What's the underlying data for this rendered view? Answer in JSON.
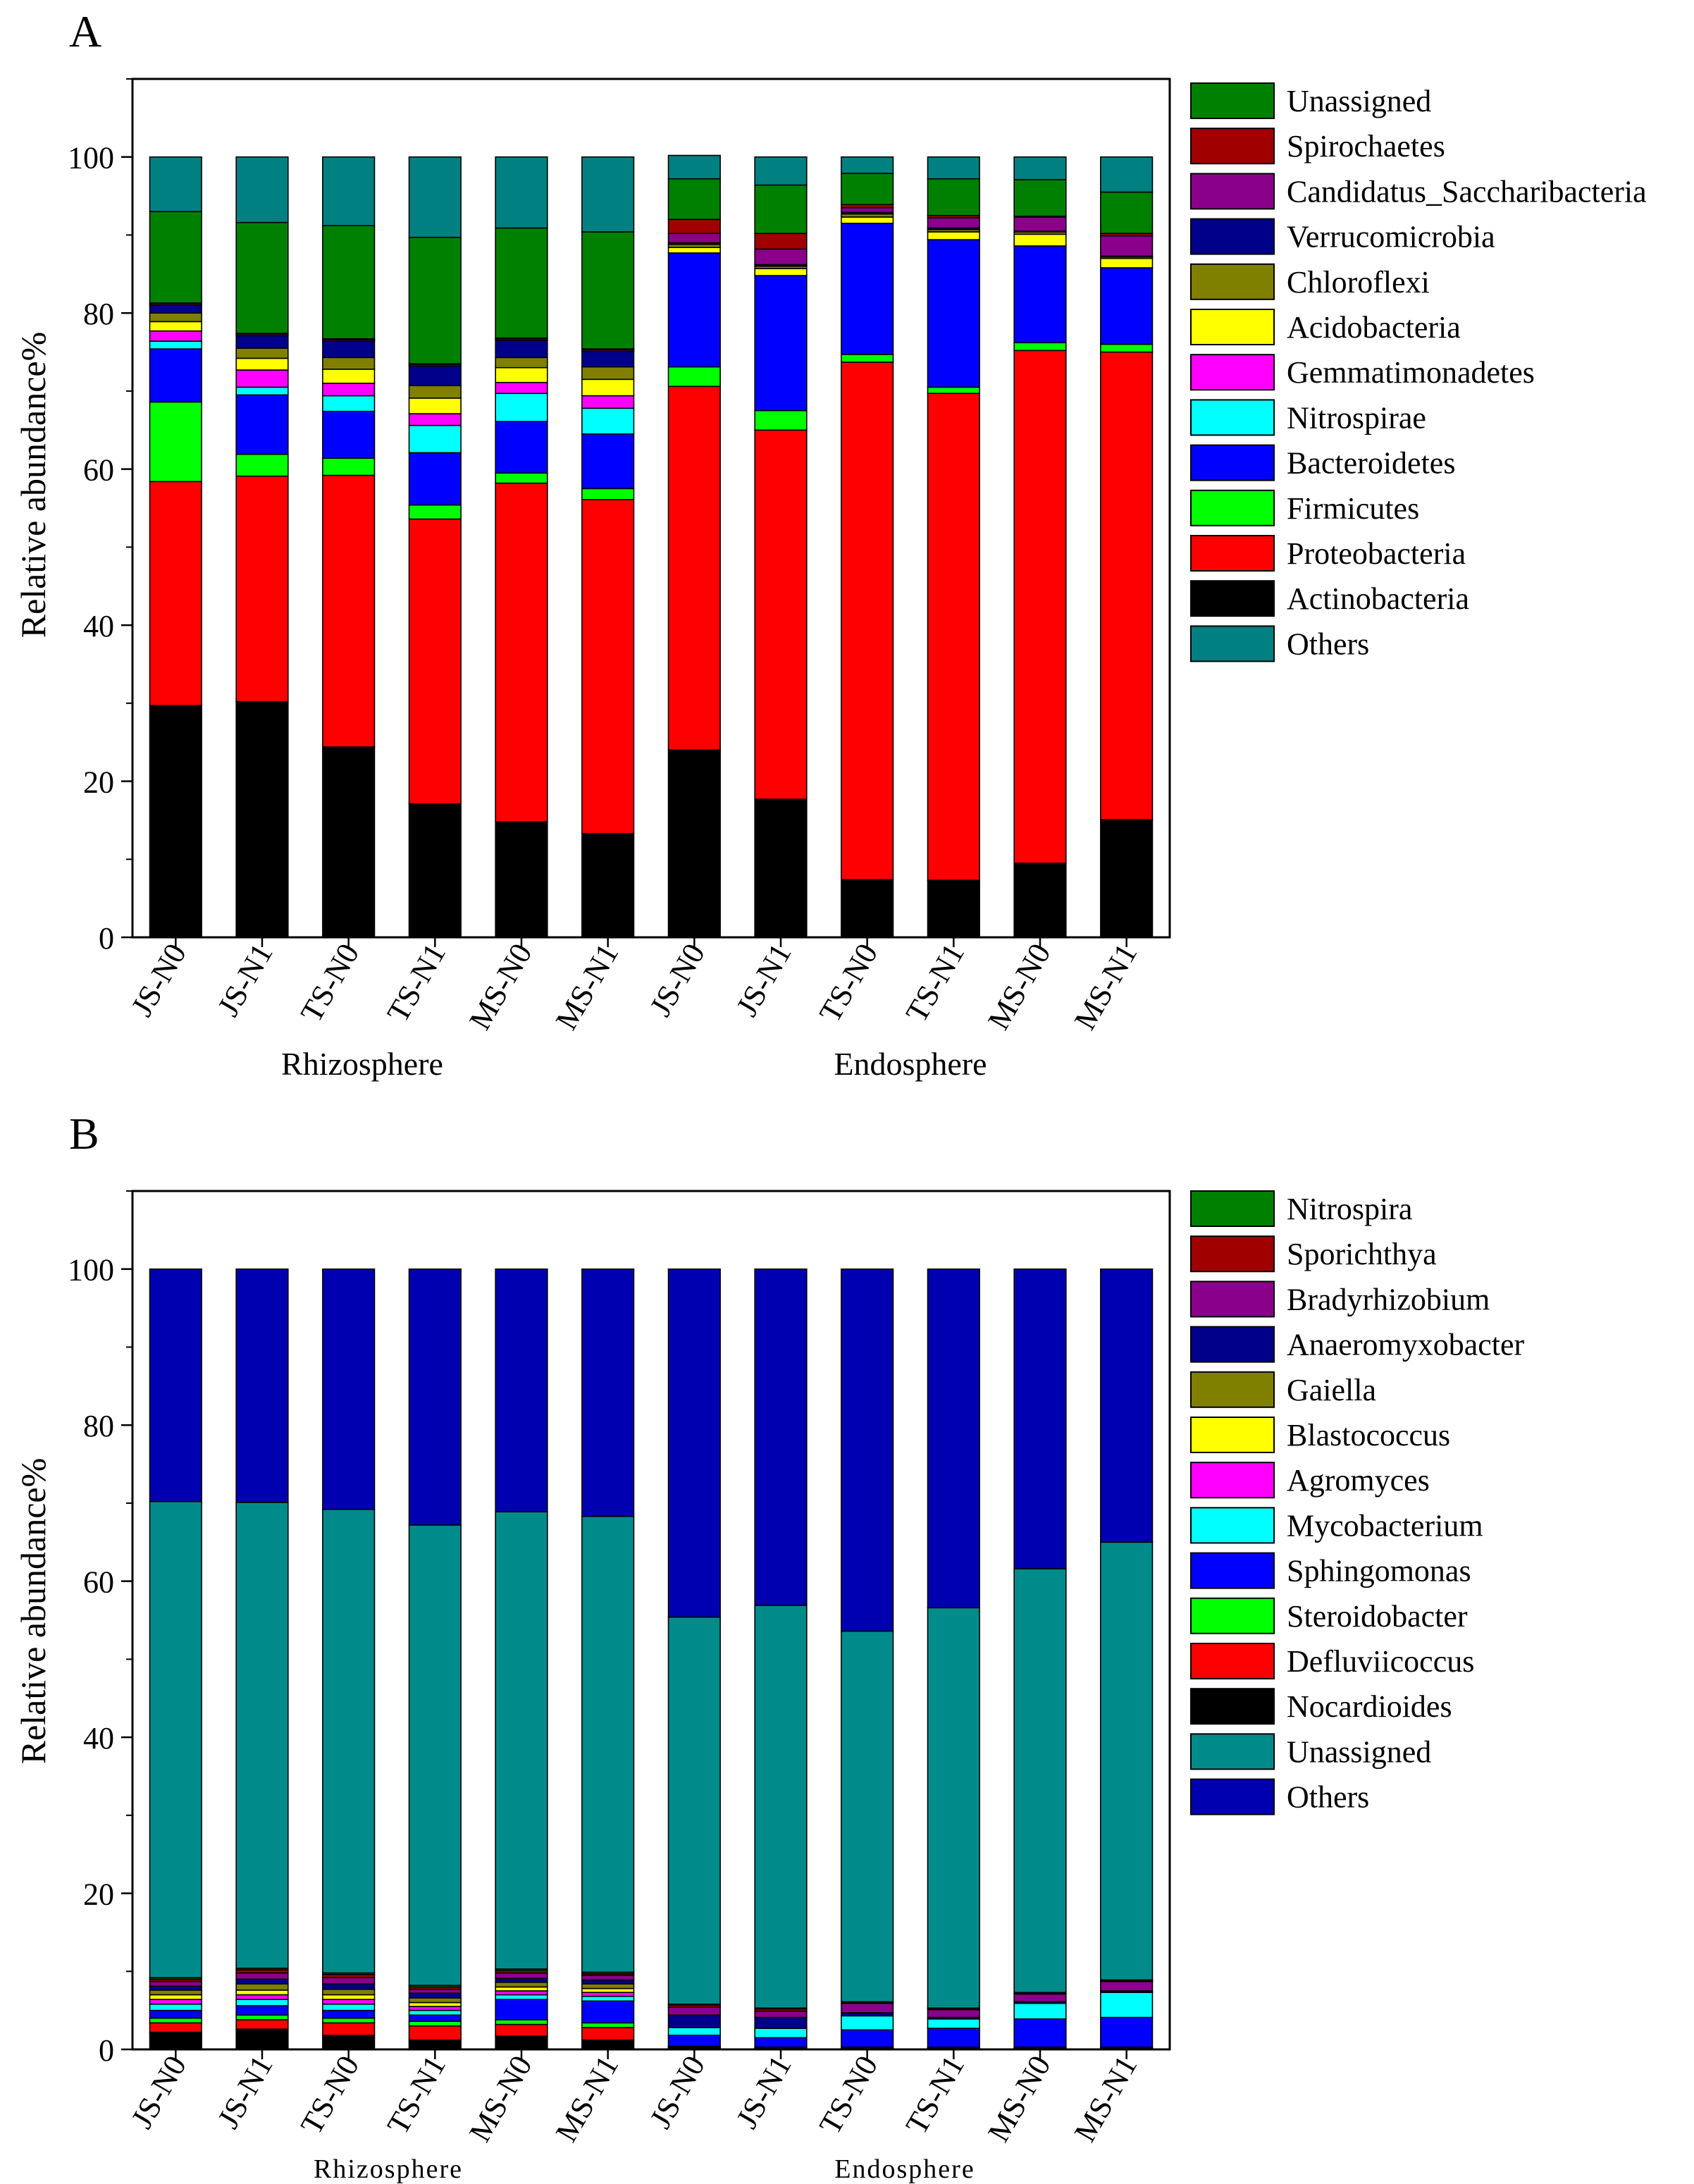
{
  "colors": {
    "Unassigned_A": "#008000",
    "Spirochaetes": "#a00000",
    "Candidatus_Saccharibacteria": "#8b008b",
    "Verrucomicrobia": "#00008b",
    "Chloroflexi": "#808000",
    "Acidobacteria": "#ffff00",
    "Gemmatimonadetes": "#ff00ff",
    "Nitrospirae": "#00ffff",
    "Bacteroidetes": "#0000ff",
    "Firmicutes": "#00ff00",
    "Proteobacteria": "#ff0000",
    "Actinobacteria": "#000000",
    "Others_A": "#008080",
    "grid": "#000000"
  },
  "chart_data": [
    {
      "panel": "A",
      "type": "bar",
      "stacked": true,
      "ylabel": "Relative abundance%",
      "ylim": [
        0,
        110
      ],
      "yticks": [
        "0",
        "20",
        "40",
        "60",
        "80",
        "100"
      ],
      "categories": [
        "JS-N0",
        "JS-N1",
        "TS-N0",
        "TS-N1",
        "MS-N0",
        "MS-N1",
        "JS-N0",
        "JS-N1",
        "TS-N0",
        "TS-N1",
        "MS-N0",
        "MS-N1"
      ],
      "groups": [
        {
          "label": "Rhizosphere",
          "from": 0,
          "to": 5
        },
        {
          "label": "Endosphere",
          "from": 6,
          "to": 11
        }
      ],
      "legend": [
        "Unassigned",
        "Spirochaetes",
        "Candidatus_Saccharibacteria",
        "Verrucomicrobia",
        "Chloroflexi",
        "Acidobacteria",
        "Gemmatimonadetes",
        "Nitrospirae",
        "Bacteroidetes",
        "Firmicutes",
        "Proteobacteria",
        "Actinobacteria",
        "Others"
      ],
      "legend_colors": [
        "#008000",
        "#a00000",
        "#8b008b",
        "#00008b",
        "#808000",
        "#ffff00",
        "#ff00ff",
        "#00ffff",
        "#0000ff",
        "#00ff00",
        "#ff0000",
        "#000000",
        "#008080"
      ],
      "stack_order": [
        "Actinobacteria",
        "Proteobacteria",
        "Firmicutes",
        "Bacteroidetes",
        "Nitrospirae",
        "Gemmatimonadetes",
        "Acidobacteria",
        "Chloroflexi",
        "Verrucomicrobia",
        "Candidatus_Saccharibacteria",
        "Spirochaetes",
        "Unassigned",
        "Others"
      ],
      "stack_colors": [
        "#000000",
        "#ff0000",
        "#00ff00",
        "#0000ff",
        "#00ffff",
        "#ff00ff",
        "#ffff00",
        "#808000",
        "#00008b",
        "#8b008b",
        "#a00000",
        "#008000",
        "#008080"
      ],
      "series": [
        {
          "name": "Actinobacteria",
          "values": [
            29.7,
            30.2,
            24.4,
            17.1,
            14.8,
            13.3,
            24.0,
            17.7,
            7.4,
            7.3,
            9.5,
            15.1
          ]
        },
        {
          "name": "Proteobacteria",
          "values": [
            28.7,
            28.9,
            34.8,
            36.5,
            43.4,
            42.8,
            46.6,
            47.3,
            66.3,
            62.4,
            65.7,
            59.9
          ]
        },
        {
          "name": "Firmicutes",
          "values": [
            10.2,
            2.8,
            2.2,
            1.8,
            1.3,
            1.4,
            2.5,
            2.5,
            1.0,
            0.8,
            1.0,
            1.0
          ]
        },
        {
          "name": "Bacteroidetes",
          "values": [
            6.8,
            7.6,
            6.0,
            6.7,
            6.6,
            7.0,
            14.6,
            17.3,
            16.8,
            18.9,
            12.4,
            9.8
          ]
        },
        {
          "name": "Nitrospirae",
          "values": [
            1.0,
            1.0,
            2.0,
            3.5,
            3.6,
            3.3,
            0.0,
            0.0,
            0.0,
            0.0,
            0.0,
            0.0
          ]
        },
        {
          "name": "Gemmatimonadetes",
          "values": [
            1.3,
            2.2,
            1.6,
            1.5,
            1.4,
            1.6,
            0.0,
            0.0,
            0.0,
            0.0,
            0.0,
            0.0
          ]
        },
        {
          "name": "Acidobacteria",
          "values": [
            1.2,
            1.5,
            1.8,
            2.0,
            1.9,
            2.1,
            0.7,
            0.9,
            0.8,
            1.0,
            1.5,
            1.2
          ]
        },
        {
          "name": "Chloroflexi",
          "values": [
            1.1,
            1.3,
            1.5,
            1.6,
            1.3,
            1.6,
            0.4,
            0.3,
            0.4,
            0.3,
            0.3,
            0.2
          ]
        },
        {
          "name": "Verrucomicrobia",
          "values": [
            1.0,
            1.6,
            2.1,
            2.5,
            2.2,
            2.0,
            0.2,
            0.2,
            0.2,
            0.2,
            0.1,
            0.1
          ]
        },
        {
          "name": "Candidatus_Saccharibacteria",
          "values": [
            0.2,
            0.2,
            0.2,
            0.2,
            0.2,
            0.2,
            1.2,
            2.0,
            0.6,
            1.3,
            1.8,
            2.6
          ]
        },
        {
          "name": "Spirochaetes",
          "values": [
            0.1,
            0.1,
            0.1,
            0.1,
            0.1,
            0.1,
            1.8,
            2.0,
            0.4,
            0.3,
            0.1,
            0.3
          ]
        },
        {
          "name": "Unassigned",
          "values": [
            11.7,
            14.2,
            14.5,
            16.2,
            14.1,
            15.0,
            5.2,
            6.2,
            4.0,
            4.7,
            4.7,
            5.3
          ]
        },
        {
          "name": "Others",
          "values": [
            7.0,
            8.4,
            8.8,
            10.3,
            9.1,
            9.6,
            3.0,
            3.6,
            2.1,
            2.8,
            2.9,
            4.5
          ]
        }
      ]
    },
    {
      "panel": "B",
      "type": "bar",
      "stacked": true,
      "ylabel": "Relative abundance%",
      "ylim": [
        0,
        110
      ],
      "yticks": [
        "0",
        "20",
        "40",
        "60",
        "80",
        "100"
      ],
      "categories": [
        "JS-N0",
        "JS-N1",
        "TS-N0",
        "TS-N1",
        "MS-N0",
        "MS-N1",
        "JS-N0",
        "JS-N1",
        "TS-N0",
        "TS-N1",
        "MS-N0",
        "MS-N1"
      ],
      "groups": [
        {
          "label": "Rhizosphere",
          "from": 0,
          "to": 5
        },
        {
          "label": "Endosphere",
          "from": 6,
          "to": 11
        }
      ],
      "legend": [
        "Nitrospira",
        "Sporichthya",
        "Bradyrhizobium",
        "Anaeromyxobacter",
        "Gaiella",
        "Blastococcus",
        "Agromyces",
        "Mycobacterium",
        "Sphingomonas",
        "Steroidobacter",
        "Defluviicoccus",
        "Nocardioides",
        "Unassigned",
        "Others"
      ],
      "legend_colors": [
        "#008000",
        "#a00000",
        "#8b008b",
        "#00008b",
        "#808000",
        "#ffff00",
        "#ff00ff",
        "#00ffff",
        "#0000ff",
        "#00ff00",
        "#ff0000",
        "#000000",
        "#008b8b",
        "#0000b0"
      ],
      "stack_order": [
        "Nocardioides",
        "Defluviicoccus",
        "Steroidobacter",
        "Sphingomonas",
        "Mycobacterium",
        "Agromyces",
        "Blastococcus",
        "Gaiella",
        "Anaeromyxobacter",
        "Bradyrhizobium",
        "Sporichthya",
        "Nitrospira",
        "Unassigned",
        "Others"
      ],
      "stack_colors": [
        "#000000",
        "#ff0000",
        "#00ff00",
        "#0000ff",
        "#00ffff",
        "#ff00ff",
        "#ffff00",
        "#808000",
        "#00008b",
        "#8b008b",
        "#a00000",
        "#008000",
        "#008b8b",
        "#0000b0"
      ],
      "series": [
        {
          "name": "Nocardioides",
          "values": [
            2.2,
            2.6,
            1.8,
            1.2,
            1.7,
            1.2,
            0.2,
            0.1,
            0.1,
            0.1,
            0.1,
            0.1
          ]
        },
        {
          "name": "Defluviicoccus",
          "values": [
            1.2,
            1.2,
            1.6,
            1.8,
            1.5,
            1.6,
            0.1,
            0.1,
            0.1,
            0.1,
            0.1,
            0.1
          ]
        },
        {
          "name": "Steroidobacter",
          "values": [
            0.6,
            0.6,
            0.6,
            0.6,
            0.6,
            0.6,
            0.1,
            0.1,
            0.1,
            0.1,
            0.1,
            0.1
          ]
        },
        {
          "name": "Sphingomonas",
          "values": [
            1.0,
            1.2,
            1.0,
            0.8,
            2.6,
            2.8,
            1.4,
            1.2,
            2.2,
            2.4,
            3.6,
            3.8
          ]
        },
        {
          "name": "Mycobacterium",
          "values": [
            0.8,
            0.8,
            0.8,
            0.6,
            0.6,
            0.6,
            1.0,
            1.2,
            1.8,
            1.2,
            2.0,
            3.2
          ]
        },
        {
          "name": "Agromyces",
          "values": [
            0.6,
            0.6,
            0.6,
            0.5,
            0.5,
            0.5,
            0.0,
            0.0,
            0.0,
            0.0,
            0.0,
            0.0
          ]
        },
        {
          "name": "Blastococcus",
          "values": [
            0.6,
            0.6,
            0.6,
            0.5,
            0.5,
            0.5,
            0.0,
            0.0,
            0.0,
            0.0,
            0.0,
            0.0
          ]
        },
        {
          "name": "Gaiella",
          "values": [
            0.6,
            0.8,
            0.7,
            0.6,
            0.6,
            0.6,
            0.0,
            0.0,
            0.0,
            0.0,
            0.0,
            0.0
          ]
        },
        {
          "name": "Anaeromyxobacter",
          "values": [
            0.5,
            0.6,
            0.7,
            0.6,
            0.5,
            0.5,
            1.6,
            1.4,
            0.4,
            0.2,
            0.2,
            0.2
          ]
        },
        {
          "name": "Bradyrhizobium",
          "values": [
            0.6,
            0.8,
            0.8,
            0.5,
            0.7,
            0.6,
            1.0,
            0.8,
            1.2,
            1.0,
            1.0,
            1.2
          ]
        },
        {
          "name": "Sporichthya",
          "values": [
            0.3,
            0.4,
            0.4,
            0.3,
            0.3,
            0.2,
            0.3,
            0.3,
            0.1,
            0.1,
            0.1,
            0.1
          ]
        },
        {
          "name": "Nitrospira",
          "values": [
            0.2,
            0.2,
            0.2,
            0.2,
            0.2,
            0.2,
            0.1,
            0.1,
            0.1,
            0.1,
            0.1,
            0.1
          ]
        },
        {
          "name": "Unassigned",
          "values": [
            61.0,
            59.7,
            59.4,
            59.0,
            58.6,
            58.4,
            49.6,
            51.6,
            47.5,
            51.3,
            54.3,
            56.1
          ]
        },
        {
          "name": "Others",
          "values": [
            29.8,
            29.9,
            30.8,
            32.8,
            31.1,
            31.7,
            44.6,
            43.1,
            46.4,
            43.4,
            38.4,
            35.0
          ]
        }
      ]
    }
  ]
}
